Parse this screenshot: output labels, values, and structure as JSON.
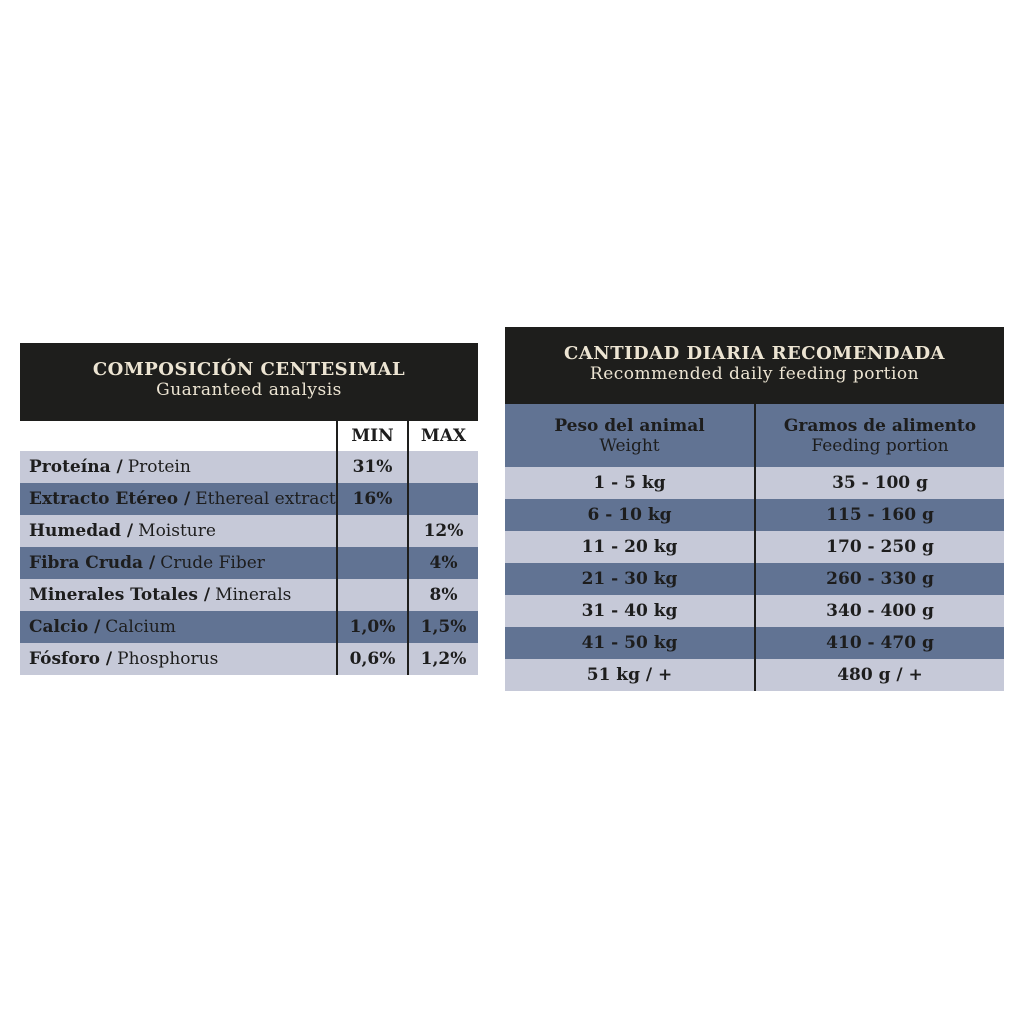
{
  "composition": {
    "title": "COMPOSICIÓN CENTESIMAL",
    "subtitle": "Guaranteed analysis",
    "columns": [
      "MIN",
      "MAX"
    ],
    "rows": [
      {
        "name": "Proteína /",
        "translation": "Protein",
        "min": "31%",
        "max": null
      },
      {
        "name": "Extracto Etéreo /",
        "translation": "Ethereal extract",
        "min": "16%",
        "max": null
      },
      {
        "name": "Humedad /",
        "translation": "Moisture",
        "min": null,
        "max": "12%"
      },
      {
        "name": "Fibra Cruda /",
        "translation": "Crude Fiber",
        "min": null,
        "max": "4%"
      },
      {
        "name": "Minerales Totales /",
        "translation": "Minerals",
        "min": null,
        "max": "8%"
      },
      {
        "name": "Calcio /",
        "translation": "Calcium",
        "min": "1,0%",
        "max": "1,5%"
      },
      {
        "name": "Fósforo /",
        "translation": "Phosphorus",
        "min": "0,6%",
        "max": "1,2%"
      }
    ]
  },
  "feeding": {
    "title": "CANTIDAD DIARIA RECOMENDADA",
    "subtitle": "Recommended daily feeding portion",
    "headers": [
      {
        "name": "Peso del animal",
        "translation": "Weight"
      },
      {
        "name": "Gramos de alimento",
        "translation": "Feeding portion"
      }
    ],
    "rows": [
      [
        "1 - 5 kg",
        "35 - 100 g"
      ],
      [
        "6 - 10 kg",
        "115 - 160 g"
      ],
      [
        "11 - 20 kg",
        "170 - 250 g"
      ],
      [
        "21 - 30 kg",
        "260 - 330 g"
      ],
      [
        "31 - 40 kg",
        "340 - 400 g"
      ],
      [
        "41 - 50 kg",
        "410 - 470 g"
      ],
      [
        "51 kg / +",
        "480 g / +"
      ]
    ]
  }
}
